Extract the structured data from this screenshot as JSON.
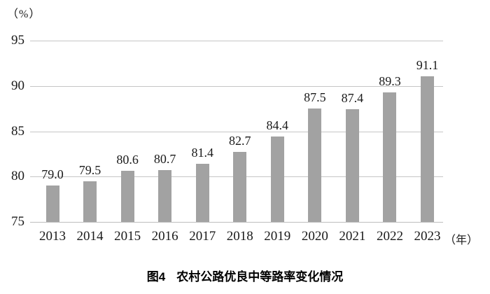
{
  "chart_data": {
    "type": "bar",
    "title": "图4　农村公路优良中等路率变化情况",
    "categories": [
      "2013",
      "2014",
      "2015",
      "2016",
      "2017",
      "2018",
      "2019",
      "2020",
      "2021",
      "2022",
      "2023"
    ],
    "values": [
      79.0,
      79.5,
      80.6,
      80.7,
      81.4,
      82.7,
      84.4,
      87.5,
      87.4,
      89.3,
      91.1
    ],
    "value_labels": [
      "79.0",
      "79.5",
      "80.6",
      "80.7",
      "81.4",
      "82.7",
      "84.4",
      "87.5",
      "87.4",
      "89.3",
      "91.1"
    ],
    "xlabel": "（年）",
    "ylabel": "（%）",
    "ylim": [
      75,
      95
    ],
    "yticks": [
      75,
      80,
      85,
      90,
      95
    ],
    "grid": true,
    "legend": false,
    "bar_color": "#a2a2a2",
    "gridline_color": "#c6c6c6",
    "baseline_color": "#bdbdbd",
    "text_color": "#1a1a1a"
  },
  "axes": {
    "y_unit": "（%）",
    "x_unit": "（年）"
  },
  "caption": {
    "label": "图4",
    "title": "农村公路优良中等路率变化情况"
  }
}
